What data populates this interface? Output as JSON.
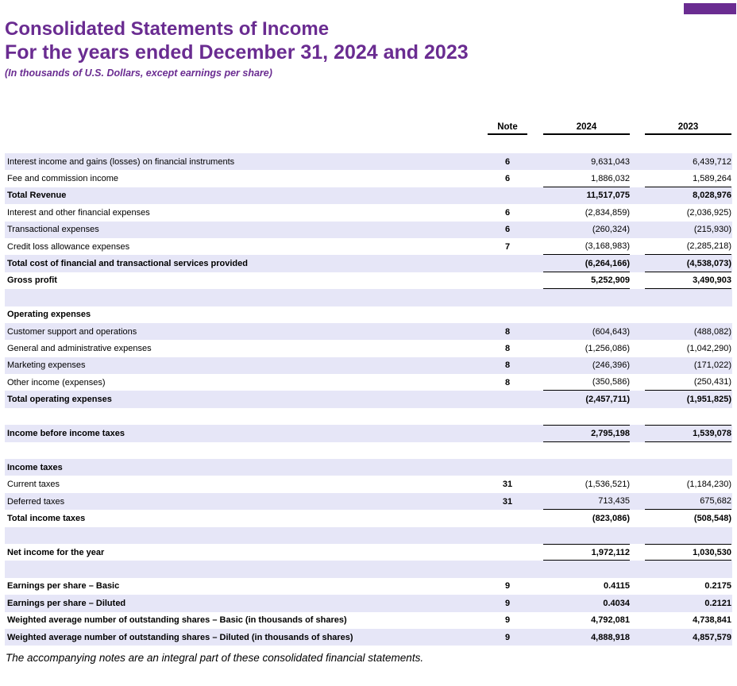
{
  "doc": {
    "title_line1": "Consolidated Statements of Income",
    "title_line2": "For the years ended December 31, 2024 and 2023",
    "subtitle": "(In thousands of U.S. Dollars, except earnings per share)",
    "footnote": "The accompanying notes are an integral part of these consolidated financial statements."
  },
  "colors": {
    "title_purple": "#6A2C91",
    "corner_block_purple": "#6A2C91",
    "row_shade_lavender": "#E6E6F7",
    "table_line_black": "#000000"
  },
  "table": {
    "columns": {
      "note": "Note",
      "y2024": "2024",
      "y2023": "2023"
    },
    "rows": [
      {
        "label": "Interest income and gains (losses) on financial instruments",
        "note": "6",
        "v2024": "9,631,043",
        "v2023": "6,439,712",
        "bold": false,
        "bt": false,
        "bb": false
      },
      {
        "label": "Fee and commission income",
        "note": "6",
        "v2024": "1,886,032",
        "v2023": "1,589,264",
        "bold": false,
        "bt": false,
        "bb": true
      },
      {
        "label": "Total Revenue",
        "note": "",
        "v2024": "11,517,075",
        "v2023": "8,028,976",
        "bold": true,
        "bt": false,
        "bb": false
      },
      {
        "label": "Interest and other financial expenses",
        "note": "6",
        "v2024": "(2,834,859)",
        "v2023": "(2,036,925)",
        "bold": false,
        "bt": false,
        "bb": false
      },
      {
        "label": "Transactional expenses",
        "note": "6",
        "v2024": "(260,324)",
        "v2023": "(215,930)",
        "bold": false,
        "bt": false,
        "bb": false
      },
      {
        "label": "Credit loss allowance expenses",
        "note": "7",
        "v2024": "(3,168,983)",
        "v2023": "(2,285,218)",
        "bold": false,
        "bt": false,
        "bb": true
      },
      {
        "label": "Total cost of financial and transactional services provided",
        "note": "",
        "v2024": "(6,264,166)",
        "v2023": "(4,538,073)",
        "bold": true,
        "bt": false,
        "bb": true
      },
      {
        "label": "Gross profit",
        "note": "",
        "v2024": "5,252,909",
        "v2023": "3,490,903",
        "bold": true,
        "bt": false,
        "bb": true
      },
      {
        "label": "",
        "note": "",
        "v2024": "",
        "v2023": "",
        "bold": false,
        "bt": false,
        "bb": false
      },
      {
        "label": "Operating expenses",
        "note": "",
        "v2024": "",
        "v2023": "",
        "bold": true,
        "bt": false,
        "bb": false
      },
      {
        "label": "Customer support and operations",
        "note": "8",
        "v2024": "(604,643)",
        "v2023": "(488,082)",
        "bold": false,
        "bt": false,
        "bb": false
      },
      {
        "label": "General and administrative expenses",
        "note": "8",
        "v2024": "(1,256,086)",
        "v2023": "(1,042,290)",
        "bold": false,
        "bt": false,
        "bb": false
      },
      {
        "label": "Marketing expenses",
        "note": "8",
        "v2024": "(246,396)",
        "v2023": "(171,022)",
        "bold": false,
        "bt": false,
        "bb": false
      },
      {
        "label": "Other income (expenses)",
        "note": "8",
        "v2024": "(350,586)",
        "v2023": "(250,431)",
        "bold": false,
        "bt": false,
        "bb": true
      },
      {
        "label": "Total operating expenses",
        "note": "",
        "v2024": "(2,457,711)",
        "v2023": "(1,951,825)",
        "bold": true,
        "bt": false,
        "bb": false
      },
      {
        "label": "",
        "note": "",
        "v2024": "",
        "v2023": "",
        "bold": false,
        "bt": false,
        "bb": false
      },
      {
        "label": "Income before income taxes",
        "note": "",
        "v2024": "2,795,198",
        "v2023": "1,539,078",
        "bold": true,
        "bt": true,
        "bb": true
      },
      {
        "label": "",
        "note": "",
        "v2024": "",
        "v2023": "",
        "bold": false,
        "bt": false,
        "bb": false
      },
      {
        "label": "Income taxes",
        "note": "",
        "v2024": "",
        "v2023": "",
        "bold": true,
        "bt": false,
        "bb": false
      },
      {
        "label": "Current taxes",
        "note": "31",
        "v2024": "(1,536,521)",
        "v2023": "(1,184,230)",
        "bold": false,
        "bt": false,
        "bb": false
      },
      {
        "label": "Deferred taxes",
        "note": "31",
        "v2024": "713,435",
        "v2023": "675,682",
        "bold": false,
        "bt": false,
        "bb": true
      },
      {
        "label": "Total income taxes",
        "note": "",
        "v2024": "(823,086)",
        "v2023": "(508,548)",
        "bold": true,
        "bt": false,
        "bb": false
      },
      {
        "label": "",
        "note": "",
        "v2024": "",
        "v2023": "",
        "bold": false,
        "bt": false,
        "bb": false
      },
      {
        "label": "Net income for the year",
        "note": "",
        "v2024": "1,972,112",
        "v2023": "1,030,530",
        "bold": true,
        "bt": true,
        "bb": true
      },
      {
        "label": "",
        "note": "",
        "v2024": "",
        "v2023": "",
        "bold": false,
        "bt": false,
        "bb": false
      },
      {
        "label": "Earnings per share – Basic",
        "note": "9",
        "v2024": "0.4115",
        "v2023": "0.2175",
        "bold": true,
        "bt": false,
        "bb": false
      },
      {
        "label": "Earnings per share – Diluted",
        "note": "9",
        "v2024": "0.4034",
        "v2023": "0.2121",
        "bold": true,
        "bt": false,
        "bb": false
      },
      {
        "label": "Weighted average number of outstanding shares – Basic (in thousands of shares)",
        "note": "9",
        "v2024": "4,792,081",
        "v2023": "4,738,841",
        "bold": true,
        "bt": false,
        "bb": false
      },
      {
        "label": "Weighted average number of outstanding shares – Diluted (in thousands of shares)",
        "note": "9",
        "v2024": "4,888,918",
        "v2023": "4,857,579",
        "bold": true,
        "bt": false,
        "bb": false
      }
    ]
  }
}
